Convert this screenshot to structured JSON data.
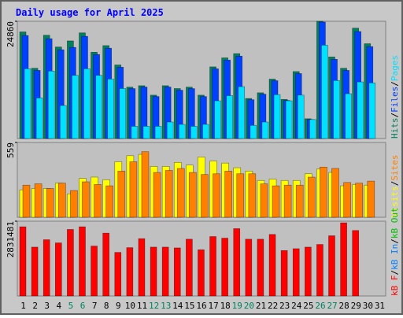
{
  "chart_data": {
    "type": "bar",
    "title": "Daily usage for April 2025",
    "categories": [
      "1",
      "2",
      "3",
      "4",
      "5",
      "6",
      "7",
      "8",
      "9",
      "10",
      "11",
      "12",
      "13",
      "14",
      "15",
      "16",
      "17",
      "18",
      "19",
      "20",
      "21",
      "22",
      "23",
      "24",
      "25",
      "26",
      "27",
      "28",
      "29",
      "30",
      "31"
    ],
    "category_colors": [
      "#000000",
      "#000000",
      "#000000",
      "#000000",
      "#00805c",
      "#00805c",
      "#000000",
      "#000000",
      "#000000",
      "#000000",
      "#000000",
      "#00805c",
      "#00805c",
      "#000000",
      "#000000",
      "#000000",
      "#000000",
      "#000000",
      "#00805c",
      "#00805c",
      "#000000",
      "#000000",
      "#000000",
      "#000000",
      "#000000",
      "#00805c",
      "#00805c",
      "#000000",
      "#000000",
      "#000000",
      "#000000"
    ],
    "legend_separator": "/",
    "panels": [
      {
        "ylim": [
          0,
          24860
        ],
        "yticks": [
          24860
        ],
        "series": [
          {
            "name": "Hits",
            "color": "#00805c",
            "values": [
              22600,
              14900,
              21900,
              19400,
              20700,
              22400,
              18300,
              19700,
              15600,
              10900,
              11200,
              9200,
              11200,
              10600,
              10900,
              9200,
              15200,
              17100,
              18000,
              8500,
              9700,
              12600,
              8300,
              14200,
              4200,
              24860,
              17300,
              14900,
              23400,
              20100,
              null
            ]
          },
          {
            "name": "Files",
            "color": "#0040ff",
            "values": [
              21840,
              14448,
              21168,
              18816,
              19320,
              21672,
              17808,
              19152,
              15120,
              10584,
              10920,
              8904,
              10920,
              10248,
              10584,
              8904,
              14784,
              16632,
              17472,
              8232,
              9408,
              12264,
              8064,
              13776,
              4032,
              24700,
              16800,
              14448,
              22680,
              19488,
              null
            ]
          },
          {
            "name": "Pages",
            "color": "#00e0ff",
            "values": [
              14800,
              8600,
              14300,
              7000,
              13400,
              14800,
              13400,
              12600,
              10600,
              2600,
              2600,
              2600,
              3500,
              3000,
              2600,
              3000,
              8000,
              9100,
              11000,
              2800,
              3500,
              9300,
              8000,
              9200,
              4032,
              19800,
              12300,
              9500,
              12000,
              11800,
              null
            ]
          }
        ]
      },
      {
        "ylim": [
          0,
          559
        ],
        "yticks": [
          559
        ],
        "series": [
          {
            "name": "Visits",
            "color": "#ffff00",
            "values": [
              205,
              215,
              215,
              255,
              175,
              290,
              300,
              280,
              415,
              460,
              470,
              380,
              380,
              410,
              390,
              450,
              420,
              405,
              370,
              345,
              275,
              285,
              275,
              275,
              325,
              360,
              335,
              235,
              245,
              240,
              null
            ]
          },
          {
            "name": "Sites",
            "color": "#ff8000",
            "values": [
              240,
              250,
              215,
              255,
              200,
              265,
              245,
              235,
              345,
              415,
              490,
              335,
              350,
              365,
              335,
              320,
              325,
              345,
              325,
              325,
              250,
              235,
              240,
              240,
              300,
              375,
              365,
              260,
              255,
              270,
              null
            ]
          }
        ]
      },
      {
        "ylim": [
          0,
          2831481
        ],
        "yticks": [
          2831481
        ],
        "series": [
          {
            "name": "kB F",
            "color": "#ff0000",
            "values": [
              2620000,
              1850000,
              2130000,
              2010000,
              2520000,
              2620000,
              1890000,
              2380000,
              1650000,
              1830000,
              2170000,
              1850000,
              1850000,
              1820000,
              2150000,
              1750000,
              2250000,
              2190000,
              2550000,
              2150000,
              2150000,
              2330000,
              1720000,
              1790000,
              1850000,
              1950000,
              2280000,
              2770000,
              2480000,
              null,
              null
            ]
          },
          {
            "name": "kB In",
            "color": "#0080ff",
            "values": [
              0,
              0,
              0,
              0,
              0,
              0,
              0,
              0,
              0,
              0,
              0,
              0,
              0,
              0,
              0,
              0,
              0,
              0,
              0,
              0,
              0,
              0,
              0,
              0,
              0,
              0,
              0,
              0,
              0,
              0,
              null
            ]
          },
          {
            "name": "kB Out",
            "color": "#00c000",
            "values": [
              0,
              0,
              0,
              0,
              0,
              0,
              0,
              0,
              0,
              0,
              0,
              0,
              0,
              0,
              0,
              0,
              0,
              0,
              0,
              0,
              0,
              0,
              0,
              0,
              0,
              0,
              0,
              0,
              0,
              0,
              null
            ]
          }
        ]
      }
    ]
  }
}
